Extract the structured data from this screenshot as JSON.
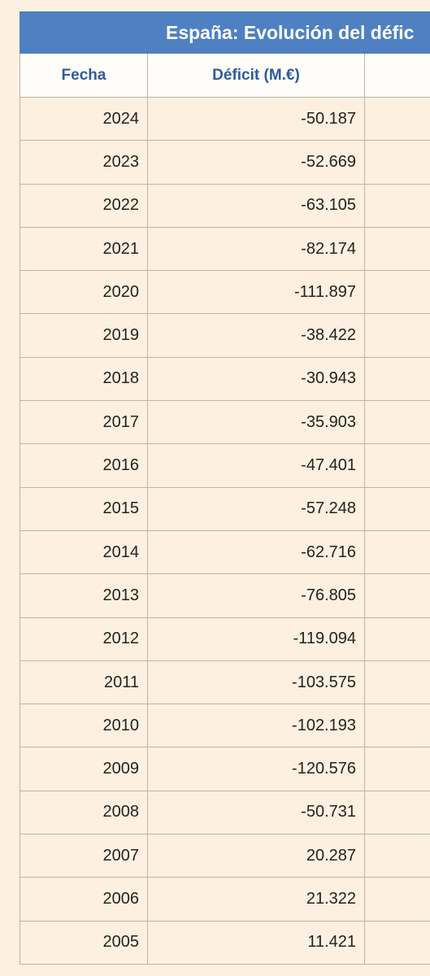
{
  "header": {
    "title": "España: Evolución del défic"
  },
  "table": {
    "columns": [
      "Fecha",
      "Déficit (M.€)"
    ],
    "rows": [
      [
        "2024",
        "-50.187"
      ],
      [
        "2023",
        "-52.669"
      ],
      [
        "2022",
        "-63.105"
      ],
      [
        "2021",
        "-82.174"
      ],
      [
        "2020",
        "-111.897"
      ],
      [
        "2019",
        "-38.422"
      ],
      [
        "2018",
        "-30.943"
      ],
      [
        "2017",
        "-35.903"
      ],
      [
        "2016",
        "-47.401"
      ],
      [
        "2015",
        "-57.248"
      ],
      [
        "2014",
        "-62.716"
      ],
      [
        "2013",
        "-76.805"
      ],
      [
        "2012",
        "-119.094"
      ],
      [
        "2011",
        "-103.575"
      ],
      [
        "2010",
        "-102.193"
      ],
      [
        "2009",
        "-120.576"
      ],
      [
        "2008",
        "-50.731"
      ],
      [
        "2007",
        "20.287"
      ],
      [
        "2006",
        "21.322"
      ],
      [
        "2005",
        "11.421"
      ]
    ]
  }
}
